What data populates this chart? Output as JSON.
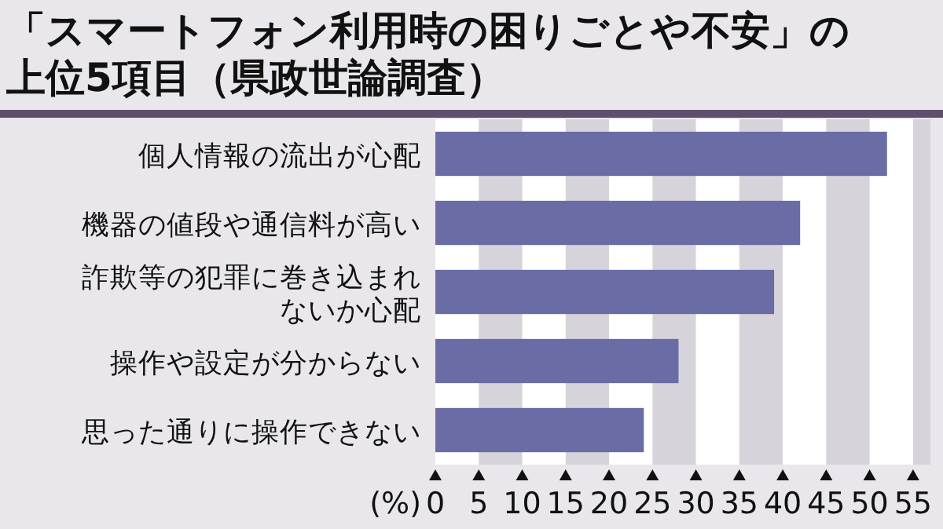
{
  "chart_data": {
    "type": "bar",
    "orientation": "horizontal",
    "title": "「スマートフォン利用時の困りごとや不安」の上位5項目（県政世論調査）",
    "categories": [
      "個人情報の流出が心配",
      "機器の値段や通信料が高い",
      "詐欺等の犯罪に巻き込まれないか心配",
      "操作や設定が分からない",
      "思った通りに操作できない"
    ],
    "values": [
      52,
      42,
      39,
      28,
      24
    ],
    "color": "#6a6ca6",
    "xlabel": "(%)",
    "xlim": [
      0,
      57
    ],
    "xticks": [
      0,
      5,
      10,
      15,
      20,
      25,
      30,
      35,
      40,
      45,
      50,
      55
    ],
    "bands": [
      {
        "axis": "x",
        "from": 5,
        "to": 10,
        "color": "#d6d3da"
      },
      {
        "axis": "x",
        "from": 15,
        "to": 20,
        "color": "#d6d3da"
      },
      {
        "axis": "x",
        "from": 25,
        "to": 30,
        "color": "#d6d3da"
      },
      {
        "axis": "x",
        "from": 35,
        "to": 40,
        "color": "#d6d3da"
      },
      {
        "axis": "x",
        "from": 45,
        "to": 50,
        "color": "#d6d3da"
      },
      {
        "axis": "x",
        "from": 55,
        "to": 57,
        "color": "#d6d3da"
      }
    ]
  }
}
